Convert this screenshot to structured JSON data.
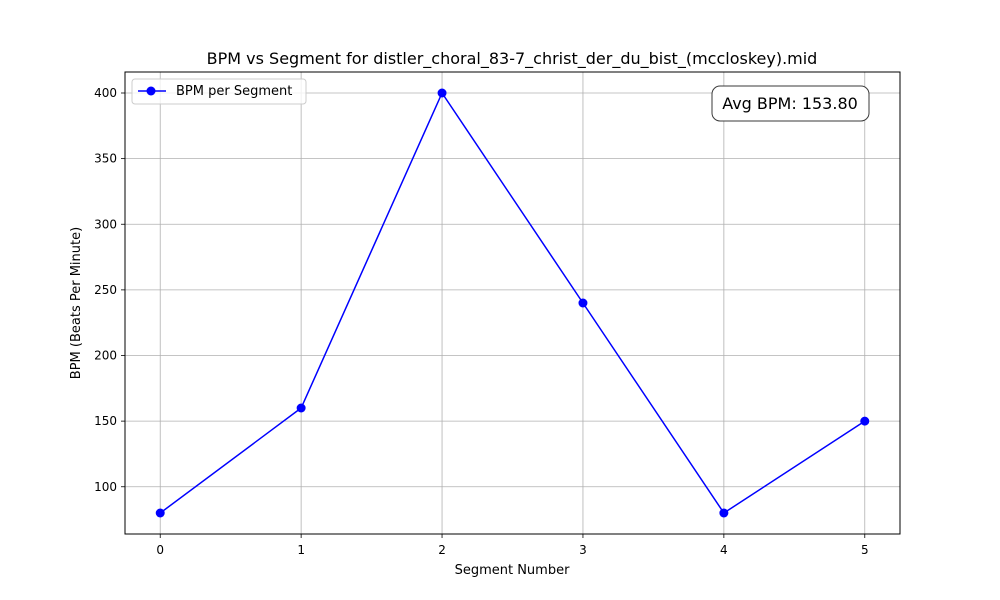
{
  "chart_data": {
    "type": "line",
    "title": "BPM vs Segment for distler_choral_83-7_christ_der_du_bist_(mccloskey).mid",
    "xlabel": "Segment Number",
    "ylabel": "BPM (Beats Per Minute)",
    "x": [
      0,
      1,
      2,
      3,
      4,
      5
    ],
    "series": [
      {
        "name": "BPM per Segment",
        "values": [
          80,
          160,
          400,
          240,
          80,
          150
        ],
        "color": "#0000ff",
        "marker": "circle"
      }
    ],
    "xlim": [
      -0.25,
      5.25
    ],
    "ylim": [
      64,
      416
    ],
    "xticks": [
      0,
      1,
      2,
      3,
      4,
      5
    ],
    "yticks": [
      100,
      150,
      200,
      250,
      300,
      350,
      400
    ],
    "grid": true,
    "legend_position": "top-left",
    "annotation": {
      "text": "Avg BPM: 153.80",
      "position": "top-right"
    }
  }
}
